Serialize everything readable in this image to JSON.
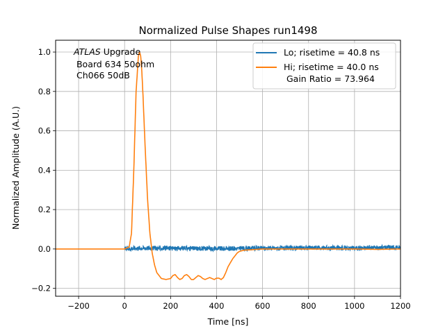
{
  "chart_data": {
    "type": "line",
    "title": "Normalized Pulse Shapes run1498",
    "xlabel": "Time [ns]",
    "ylabel": "Normalized Amplitude (A.U.)",
    "xlim": [
      -300,
      1200
    ],
    "ylim": [
      -0.24,
      1.06
    ],
    "grid": true,
    "x_ticks": [
      -200,
      0,
      200,
      400,
      600,
      800,
      1000,
      1200
    ],
    "x_tick_labels": [
      "−200",
      "0",
      "200",
      "400",
      "600",
      "800",
      "1000",
      "1200"
    ],
    "y_ticks": [
      -0.2,
      0.0,
      0.2,
      0.4,
      0.6,
      0.8,
      1.0
    ],
    "y_tick_labels": [
      "−0.2",
      "0.0",
      "0.2",
      "0.4",
      "0.6",
      "0.8",
      "1.0"
    ],
    "legend_placement": "top-right",
    "annotation": {
      "line1_italic": "ATLAS",
      "line1_rest": " Upgrade",
      "line2": " Board 634 50ohm",
      "line3": " Ch066 50dB"
    },
    "series": [
      {
        "name": "Lo; risetime = 40.8 ns",
        "color": "#1f77b4",
        "noise_amplitude": 0.012,
        "x": [
          0,
          50,
          100,
          200,
          300,
          400,
          500,
          600,
          700,
          800,
          900,
          1000,
          1100,
          1200
        ],
        "y": [
          0.0,
          0.005,
          0.005,
          0.003,
          0.003,
          0.002,
          0.003,
          0.004,
          0.004,
          0.006,
          0.005,
          0.005,
          0.006,
          0.007
        ]
      },
      {
        "name": "Hi; risetime = 40.0 ns",
        "name_line2": " Gain Ratio = 73.964",
        "color": "#ff7f0e",
        "x": [
          -300,
          0,
          20,
          30,
          40,
          50,
          60,
          65,
          70,
          75,
          80,
          90,
          100,
          110,
          120,
          130,
          140,
          160,
          180,
          200,
          210,
          220,
          230,
          240,
          250,
          260,
          270,
          280,
          290,
          300,
          310,
          320,
          330,
          340,
          350,
          360,
          370,
          380,
          390,
          400,
          410,
          420,
          430,
          440,
          450,
          460,
          470,
          480,
          490,
          500,
          520,
          550,
          600,
          700,
          800,
          900,
          1000,
          1100,
          1200
        ],
        "y": [
          0.0,
          0.0,
          0.01,
          0.08,
          0.4,
          0.8,
          0.98,
          1.0,
          0.98,
          0.9,
          0.78,
          0.5,
          0.25,
          0.08,
          -0.02,
          -0.08,
          -0.12,
          -0.15,
          -0.155,
          -0.15,
          -0.135,
          -0.13,
          -0.145,
          -0.155,
          -0.15,
          -0.135,
          -0.13,
          -0.14,
          -0.155,
          -0.155,
          -0.145,
          -0.135,
          -0.14,
          -0.15,
          -0.155,
          -0.15,
          -0.145,
          -0.15,
          -0.155,
          -0.148,
          -0.148,
          -0.155,
          -0.145,
          -0.12,
          -0.09,
          -0.07,
          -0.05,
          -0.035,
          -0.02,
          -0.012,
          -0.006,
          -0.004,
          0.0,
          0.0,
          0.0,
          0.0,
          0.0,
          -0.002,
          0.0
        ]
      }
    ]
  }
}
